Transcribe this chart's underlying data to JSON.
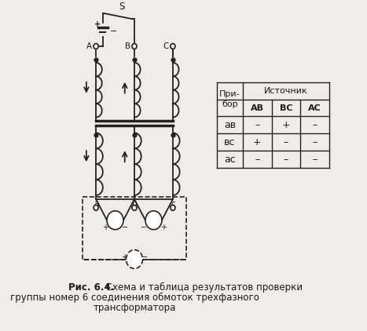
{
  "bg_color": "#f0ede8",
  "title_bold": "Рис. 6.4.",
  "title_normal": " Схема и таблица результатов проверки\nгруппы номер 6 соединения обмоток трехфазного\nтрансформатора",
  "table": {
    "header_row1": [
      "При-\nбор",
      "Источник",
      "",
      ""
    ],
    "header_row2": [
      "",
      "АВ",
      "ВС",
      "АС"
    ],
    "rows": [
      [
        "ав",
        "–",
        "+",
        "–"
      ],
      [
        "вс",
        "+",
        "–",
        "–"
      ],
      [
        "ас",
        "–",
        "–",
        "–"
      ]
    ]
  },
  "line_color": "#1a1a1a",
  "text_color": "#1a1a1a"
}
